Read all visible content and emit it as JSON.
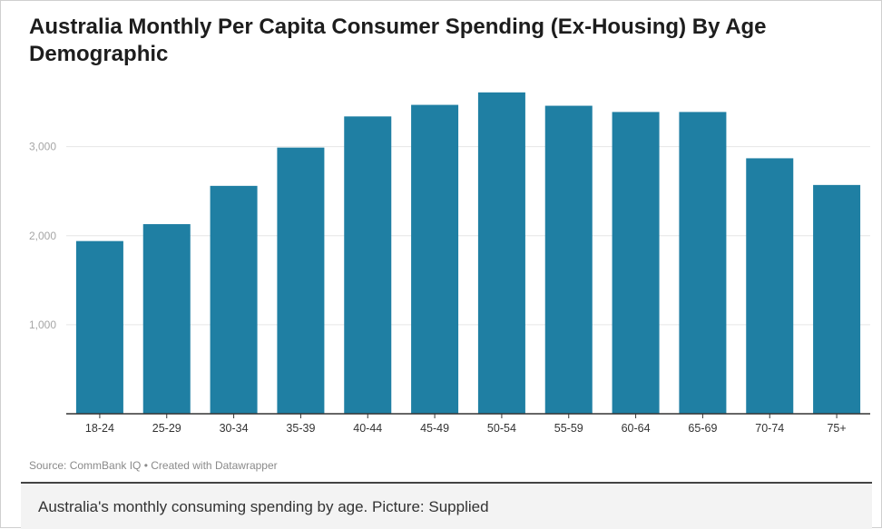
{
  "title": "Australia Monthly Per Capita Consumer Spending (Ex-Housing) By Age Demographic",
  "source": "Source: CommBank IQ • Created with Datawrapper",
  "caption": "Australia's monthly consuming spending by age. Picture: Supplied",
  "colors": {
    "bar": "#1f7fa3",
    "grid": "#e6e6e6",
    "axis": "#333333",
    "tick_label": "#a6a6a6"
  },
  "chart_data": {
    "type": "bar",
    "title": "Australia Monthly Per Capita Consumer Spending (Ex-Housing) By Age Demographic",
    "xlabel": "",
    "ylabel": "",
    "categories": [
      "18-24",
      "25-29",
      "30-34",
      "35-39",
      "40-44",
      "45-49",
      "50-54",
      "55-59",
      "60-64",
      "65-69",
      "70-74",
      "75+"
    ],
    "values": [
      1940,
      2130,
      2560,
      2990,
      3340,
      3470,
      3610,
      3460,
      3390,
      3390,
      2870,
      2570
    ],
    "ylim": [
      0,
      3700
    ],
    "yticks": [
      1000,
      2000,
      3000
    ],
    "ytick_labels": [
      "1,000",
      "2,000",
      "3,000"
    ],
    "grid": true,
    "legend": "none"
  }
}
